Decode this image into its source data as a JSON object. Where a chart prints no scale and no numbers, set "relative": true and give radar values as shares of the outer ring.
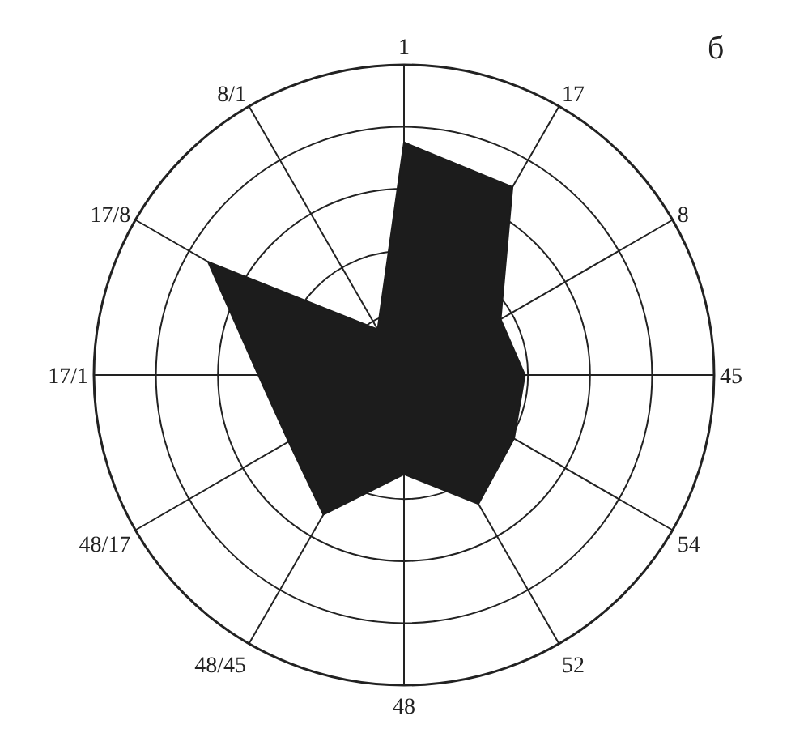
{
  "chart_data": {
    "type": "radar",
    "relative": true,
    "grid": true,
    "categories": [
      "1",
      "17",
      "8",
      "45",
      "54",
      "52",
      "48",
      "48/45",
      "48/17",
      "17/1",
      "17/8",
      "8/1"
    ],
    "series": [
      {
        "color": "#1c1c1c",
        "values": [
          0.75,
          0.7,
          0.36,
          0.39,
          0.41,
          0.48,
          0.32,
          0.52,
          0.43,
          0.47,
          0.73,
          0.17
        ]
      }
    ],
    "annotations": [
      "б"
    ]
  }
}
